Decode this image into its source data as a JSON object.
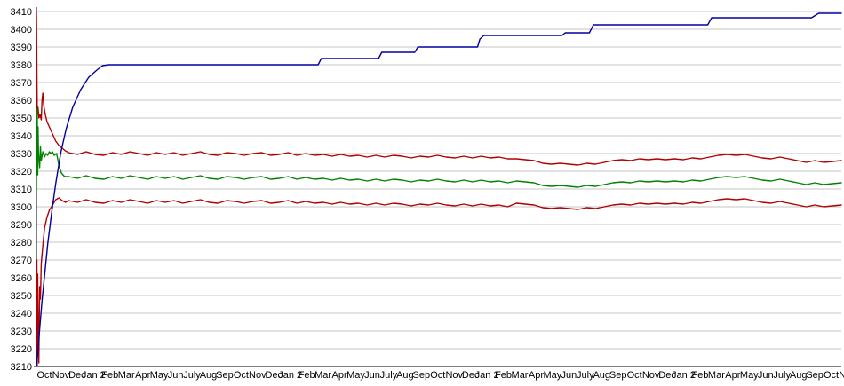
{
  "chart_data": {
    "type": "line",
    "title": "",
    "legend": "none",
    "grid": true,
    "background": "#ffffff",
    "grid_color": "#c6c6c6",
    "axis_color": "#000000",
    "y_axis": {
      "min": 3210,
      "max": 3410,
      "tick_step": 10,
      "tick_labels": [
        "3410",
        "3400",
        "3390",
        "3380",
        "3370",
        "3360",
        "3350",
        "3340",
        "3330",
        "3320",
        "3310",
        "3300",
        "3290",
        "3280",
        "3270",
        "3260",
        "3250",
        "3240",
        "3230",
        "3220",
        "3210"
      ]
    },
    "x_axis": {
      "labels": [
        "Oct",
        "Nov",
        "Dec",
        "Jan 2",
        "Feb",
        "Mar",
        "Apr",
        "May",
        "Jun",
        "July",
        "Aug",
        "Sep",
        "Oct",
        "Nov",
        "Dec",
        "Jan 2",
        "Feb",
        "Mar",
        "Apr",
        "May",
        "Jun",
        "July",
        "Aug",
        "Sep",
        "Oct",
        "Nov",
        "Dec",
        "Jan 2",
        "Feb",
        "Mar",
        "Apr",
        "May",
        "Jun",
        "July",
        "Aug",
        "Sep",
        "Oct",
        "Nov",
        "Dec",
        "Jan 2",
        "Feb",
        "Mar",
        "Apr",
        "May",
        "Jun",
        "July",
        "Aug",
        "Sep",
        "Oct",
        "Nov"
      ]
    },
    "band_x_start": 0.04,
    "band_x_step": 0.0109091,
    "series": [
      {
        "name": "upper-control-line",
        "color": "#b00000",
        "lead": [
          [
            0.0,
            3410
          ],
          [
            0.001,
            3352
          ],
          [
            0.002,
            3356
          ],
          [
            0.003,
            3350
          ],
          [
            0.0045,
            3352
          ],
          [
            0.006,
            3349
          ],
          [
            0.007,
            3360
          ],
          [
            0.008,
            3364
          ],
          [
            0.009,
            3357
          ],
          [
            0.011,
            3352
          ],
          [
            0.013,
            3348
          ],
          [
            0.015,
            3346
          ],
          [
            0.018,
            3343
          ],
          [
            0.021,
            3340
          ],
          [
            0.024,
            3337
          ],
          [
            0.028,
            3334.5
          ],
          [
            0.032,
            3333
          ],
          [
            0.036,
            3331.5
          ]
        ],
        "values": [
          3330.5,
          3329.5,
          3331,
          3329.5,
          3329,
          3330.5,
          3329.5,
          3331,
          3330,
          3329,
          3330.5,
          3329.5,
          3330.5,
          3329,
          3330,
          3331,
          3329.5,
          3329,
          3330.5,
          3330,
          3329,
          3330,
          3330.5,
          3329,
          3329.5,
          3330.5,
          3329,
          3330,
          3329,
          3329.5,
          3328.5,
          3329.5,
          3328.5,
          3329,
          3328,
          3329,
          3328,
          3329,
          3328.5,
          3327.5,
          3328.5,
          3328,
          3329,
          3328,
          3327.5,
          3328.5,
          3327.5,
          3328.5,
          3327.5,
          3328,
          3327,
          3327,
          3326.5,
          3326,
          3324.5,
          3324,
          3324.5,
          3324,
          3323.5,
          3324.5,
          3324,
          3325,
          3326,
          3326.5,
          3326,
          3327,
          3326.5,
          3327,
          3326.5,
          3327,
          3326.5,
          3327.5,
          3327,
          3328,
          3329,
          3329.5,
          3329,
          3329.5,
          3328.5,
          3327.5,
          3327,
          3328,
          3327,
          3326,
          3325,
          3326,
          3325,
          3325.5,
          3326
        ]
      },
      {
        "name": "center-line",
        "color": "#008200",
        "lead": [
          [
            0.0,
            3309
          ],
          [
            0.0005,
            3355
          ],
          [
            0.001,
            3352
          ],
          [
            0.0015,
            3318
          ],
          [
            0.002,
            3345
          ],
          [
            0.0025,
            3330
          ],
          [
            0.004,
            3322
          ],
          [
            0.005,
            3334
          ],
          [
            0.006,
            3326
          ],
          [
            0.008,
            3331
          ],
          [
            0.01,
            3328
          ],
          [
            0.012,
            3330
          ],
          [
            0.014,
            3329
          ],
          [
            0.016,
            3331
          ],
          [
            0.018,
            3330
          ],
          [
            0.02,
            3331
          ],
          [
            0.022,
            3329
          ],
          [
            0.025,
            3330
          ],
          [
            0.028,
            3323
          ],
          [
            0.031,
            3319
          ],
          [
            0.035,
            3317
          ]
        ],
        "values": [
          3317,
          3316,
          3317.5,
          3316,
          3315.5,
          3317,
          3316,
          3317.5,
          3316.5,
          3315.5,
          3317,
          3316,
          3317,
          3315.5,
          3316.5,
          3317.5,
          3316,
          3315.5,
          3317,
          3316.5,
          3315.5,
          3316.5,
          3317,
          3315.5,
          3316,
          3317,
          3315.5,
          3316.5,
          3315.5,
          3316,
          3315,
          3316,
          3315,
          3315.5,
          3314.5,
          3315.5,
          3314.5,
          3315.5,
          3315,
          3314,
          3315,
          3314.5,
          3315.5,
          3314.5,
          3314,
          3315,
          3314,
          3315,
          3314,
          3314.5,
          3313.5,
          3314.5,
          3314,
          3313.5,
          3312,
          3311.5,
          3312,
          3311.5,
          3311,
          3312,
          3311.5,
          3312.5,
          3313.5,
          3314,
          3313.5,
          3314.5,
          3314,
          3314.5,
          3314,
          3314.5,
          3314,
          3315,
          3314.5,
          3315.5,
          3316.5,
          3317,
          3316.5,
          3317,
          3316,
          3315,
          3314.5,
          3315.5,
          3314.5,
          3313.5,
          3312.5,
          3313.5,
          3312.5,
          3313,
          3313.5
        ]
      },
      {
        "name": "lower-control-line",
        "color": "#b00000",
        "lead": [
          [
            0.0005,
            3270
          ],
          [
            0.001,
            3210
          ],
          [
            0.0015,
            3262
          ],
          [
            0.002,
            3240
          ],
          [
            0.003,
            3212
          ],
          [
            0.004,
            3255
          ],
          [
            0.005,
            3248
          ],
          [
            0.006,
            3268
          ],
          [
            0.008,
            3278
          ],
          [
            0.01,
            3288
          ],
          [
            0.013,
            3294
          ],
          [
            0.016,
            3298
          ],
          [
            0.02,
            3301
          ],
          [
            0.024,
            3304
          ],
          [
            0.028,
            3305
          ],
          [
            0.032,
            3303.5
          ],
          [
            0.036,
            3302.5
          ]
        ],
        "values": [
          3303.5,
          3302.5,
          3304,
          3302.5,
          3302,
          3303.5,
          3302.5,
          3304,
          3303,
          3302,
          3303.5,
          3302.5,
          3303.5,
          3302,
          3303,
          3304,
          3302.5,
          3302,
          3303.5,
          3303,
          3302,
          3303,
          3303.5,
          3302,
          3302.5,
          3303.5,
          3302,
          3303,
          3302,
          3302.5,
          3301.5,
          3302.5,
          3301.5,
          3302,
          3301,
          3302,
          3301,
          3302,
          3301.5,
          3300.5,
          3301.5,
          3301,
          3302,
          3301,
          3300.5,
          3301.5,
          3300.5,
          3301.5,
          3300.5,
          3301,
          3300,
          3302,
          3301.5,
          3301,
          3299.5,
          3299,
          3299.5,
          3299,
          3298.5,
          3299.5,
          3299,
          3300,
          3301,
          3301.5,
          3301,
          3302,
          3301.5,
          3302,
          3301.5,
          3302,
          3301.5,
          3302.5,
          3302,
          3303,
          3304,
          3304.5,
          3304,
          3304.5,
          3303.5,
          3302.5,
          3302,
          3303,
          3302,
          3301,
          3300,
          3301,
          3300,
          3300.5,
          3301
        ]
      },
      {
        "name": "cumulative-line",
        "color": "#0000a0",
        "points": [
          [
            0.0,
            3210
          ],
          [
            0.002,
            3219
          ],
          [
            0.004,
            3231
          ],
          [
            0.007,
            3247
          ],
          [
            0.01,
            3261
          ],
          [
            0.014,
            3279
          ],
          [
            0.019,
            3297
          ],
          [
            0.024,
            3313
          ],
          [
            0.03,
            3330
          ],
          [
            0.037,
            3344
          ],
          [
            0.045,
            3356
          ],
          [
            0.055,
            3366
          ],
          [
            0.065,
            3373
          ],
          [
            0.075,
            3377
          ],
          [
            0.082,
            3379.5
          ],
          [
            0.09,
            3380
          ],
          [
            0.35,
            3380
          ],
          [
            0.354,
            3383.5
          ],
          [
            0.425,
            3383.5
          ],
          [
            0.429,
            3387
          ],
          [
            0.47,
            3387
          ],
          [
            0.474,
            3390
          ],
          [
            0.548,
            3390
          ],
          [
            0.551,
            3394.5
          ],
          [
            0.556,
            3396.5
          ],
          [
            0.653,
            3396.5
          ],
          [
            0.657,
            3398
          ],
          [
            0.687,
            3398
          ],
          [
            0.692,
            3402.5
          ],
          [
            0.834,
            3402.5
          ],
          [
            0.839,
            3406.5
          ],
          [
            0.963,
            3406.5
          ],
          [
            0.972,
            3409
          ],
          [
            1.0,
            3409
          ]
        ]
      }
    ]
  }
}
